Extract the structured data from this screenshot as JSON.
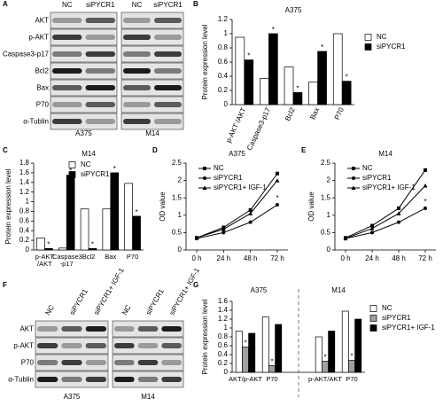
{
  "blots": [
    {
      "panel": "A",
      "columns": [
        "NC",
        "siPYCR1",
        "NC",
        "siPYCR1"
      ],
      "rows": [
        "AKT",
        "p-AKT",
        "Caspase3-p17",
        "Bcl2",
        "Bax",
        "P70",
        "α-Tublin"
      ],
      "cell_lines": [
        "A375",
        "M14"
      ]
    },
    {
      "panel": "F",
      "columns": [
        "NC",
        "siPYCR1",
        "siPYCR1+ IGF-1",
        "NC",
        "siPYCR1",
        "siPYCR1+ IGF-1"
      ],
      "rows": [
        "AKT",
        "p-AKT",
        "P70",
        "α-Tublin"
      ],
      "cell_lines": [
        "A375",
        "M14"
      ]
    }
  ],
  "chart_data": [
    {
      "panel": "B",
      "type": "bar",
      "title": "A375",
      "y_label": "Protein expression level",
      "categories": [
        "p-AKT /AKT",
        "Caspase3-p17",
        "Bcl2",
        "Bax",
        "P70"
      ],
      "series": [
        {
          "name": "NC",
          "color": "#ffffff",
          "values": [
            0.95,
            0.37,
            0.53,
            0.32,
            1.0
          ]
        },
        {
          "name": "siPYCR1",
          "color": "#000000",
          "values": [
            0.63,
            1.0,
            0.17,
            0.75,
            0.33
          ],
          "annotations": [
            "*",
            "*",
            "*",
            "*",
            "*"
          ]
        }
      ],
      "ylim": [
        0,
        1.2
      ],
      "yticks": [
        0,
        0.2,
        0.4,
        0.6,
        0.8,
        1,
        1.2
      ],
      "legend": "right"
    },
    {
      "panel": "C",
      "type": "bar",
      "title": "M14",
      "y_label": "Protein expression level",
      "categories": [
        "p-AKT /AKT",
        "Caspase3 -p17",
        "Bcl2",
        "Bax",
        "P70"
      ],
      "series": [
        {
          "name": "NC",
          "color": "#ffffff",
          "values": [
            0.25,
            0.04,
            0.85,
            0.85,
            1.38
          ]
        },
        {
          "name": "siPYCR1",
          "color": "#000000",
          "values": [
            0.03,
            1.55,
            0.03,
            1.6,
            0.7
          ],
          "annotations": [
            "*",
            "*",
            "*",
            "*",
            "*"
          ]
        }
      ],
      "ylim": [
        0,
        1.8
      ],
      "yticks": [
        0,
        0.2,
        0.4,
        0.6,
        0.8,
        1,
        1.2,
        1.4,
        1.6,
        1.8
      ],
      "legend": "top-left"
    },
    {
      "panel": "D",
      "type": "line",
      "title": "A375",
      "y_label": "OD value",
      "categories": [
        "0 h",
        "24 h",
        "48 h",
        "72 h"
      ],
      "series": [
        {
          "name": "NC",
          "color": "#000000",
          "marker": "square",
          "values": [
            0.35,
            0.65,
            1.15,
            2.2
          ]
        },
        {
          "name": "siPYCR1",
          "color": "#000000",
          "marker": "circle",
          "values": [
            0.33,
            0.5,
            0.8,
            1.3
          ],
          "annotations": [
            null,
            null,
            null,
            "*"
          ]
        },
        {
          "name": "siPYCR1+ IGF-1",
          "color": "#000000",
          "marker": "triangle",
          "values": [
            0.35,
            0.6,
            1.05,
            2.0
          ]
        }
      ],
      "ylim": [
        0,
        2.5
      ],
      "yticks": [
        0,
        0.5,
        1,
        1.5,
        2,
        2.5
      ],
      "legend": "top-left"
    },
    {
      "panel": "E",
      "type": "line",
      "title": "M14",
      "y_label": "OD value",
      "categories": [
        "0 h",
        "24 h",
        "48 h",
        "72 h"
      ],
      "series": [
        {
          "name": "NC",
          "color": "#000000",
          "marker": "square",
          "values": [
            0.35,
            0.7,
            1.2,
            2.3
          ]
        },
        {
          "name": "siPYCR1",
          "color": "#000000",
          "marker": "circle",
          "values": [
            0.33,
            0.5,
            0.8,
            1.2
          ],
          "annotations": [
            null,
            null,
            null,
            "*"
          ]
        },
        {
          "name": "siPYCR1+ IGF-1",
          "color": "#000000",
          "marker": "triangle",
          "values": [
            0.33,
            0.62,
            1.05,
            1.85
          ]
        }
      ],
      "ylim": [
        0,
        2.5
      ],
      "yticks": [
        0,
        0.5,
        1,
        1.5,
        2,
        2.5
      ],
      "legend": "top-left"
    },
    {
      "panel": "G",
      "type": "bar",
      "y_label": "Protein expression level",
      "groups": [
        "A375",
        "M14"
      ],
      "categories": [
        "AKT/p-AKT",
        "P70",
        "p-AKT/AKT",
        "P70"
      ],
      "series": [
        {
          "name": "NC",
          "color": "#ffffff",
          "values": [
            0.93,
            1.25,
            0.8,
            1.38
          ]
        },
        {
          "name": "siPYCR1",
          "color": "#a0a0a0",
          "values": [
            0.57,
            0.15,
            0.25,
            0.27
          ],
          "annotations": [
            "*",
            "*",
            "*",
            "*"
          ]
        },
        {
          "name": "siPYCR1+ IGF-1",
          "color": "#000000",
          "values": [
            0.88,
            1.08,
            0.93,
            1.2
          ]
        }
      ],
      "ylim": [
        0,
        1.6
      ],
      "yticks": [
        0,
        0.2,
        0.4,
        0.6,
        0.8,
        1,
        1.2,
        1.4,
        1.6
      ],
      "legend": "right"
    }
  ]
}
